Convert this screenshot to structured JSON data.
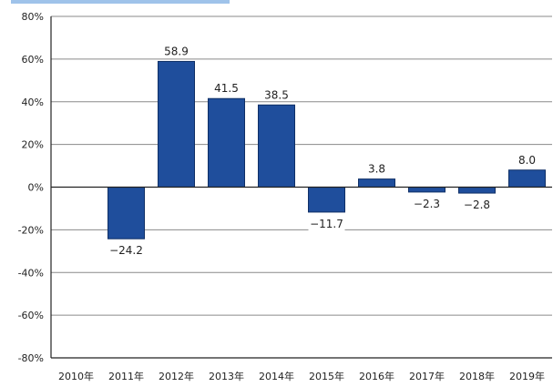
{
  "chart_data": {
    "type": "bar",
    "title": "",
    "xlabel": "",
    "ylabel": "",
    "categories": [
      "2010年",
      "2011年",
      "2012年",
      "2013年",
      "2014年",
      "2015年",
      "2016年",
      "2017年",
      "2018年",
      "2019年"
    ],
    "values": [
      0,
      -24.2,
      58.9,
      41.5,
      38.5,
      -11.7,
      3.8,
      -2.3,
      -2.8,
      8.0
    ],
    "data_labels": [
      "",
      "−24.2",
      "58.9",
      "41.5",
      "38.5",
      "−11.7",
      "3.8",
      "−2.3",
      "−2.8",
      "8.0"
    ],
    "ylim": [
      -80,
      80
    ],
    "yticks": [
      80,
      60,
      40,
      20,
      0,
      -20,
      -40,
      -60,
      -80
    ],
    "ytick_labels": [
      "80%",
      "60%",
      "40%",
      "20%",
      "0%",
      "-20%",
      "-40%",
      "-60%",
      "-80%"
    ],
    "grid": true,
    "legend": "none",
    "colors": {
      "bar": "#1f4e9c",
      "bar_edge": "#0f2f66",
      "grid": "#8a8a8a",
      "axis": "#222222",
      "header_strip": "#9fc3ea"
    }
  }
}
